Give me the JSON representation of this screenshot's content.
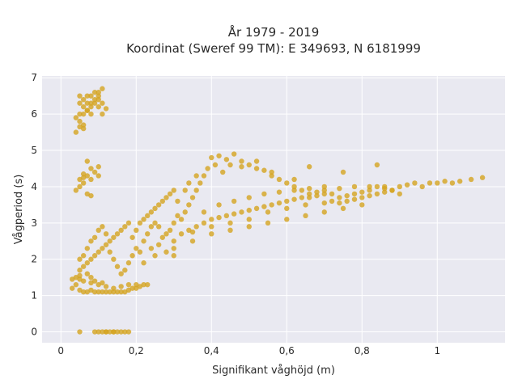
{
  "chart_data": {
    "type": "scatter",
    "title": "År 1979 - 2019",
    "subtitle": "Koordinat (Sweref 99 TM): E 349693, N 6181999",
    "xlabel": "Signifikant våghöjd (m)",
    "ylabel": "Vågperiod (s)",
    "xlim": [
      -0.05,
      1.18
    ],
    "ylim": [
      -0.3,
      7.05
    ],
    "x_ticks": [
      0,
      0.2,
      0.4,
      0.6,
      0.8,
      1
    ],
    "x_tick_labels": [
      "0",
      "0,2",
      "0,4",
      "0,6",
      "0,8",
      "1"
    ],
    "y_ticks": [
      0,
      1,
      2,
      3,
      4,
      5,
      6,
      7
    ],
    "y_tick_labels": [
      "0",
      "1",
      "2",
      "3",
      "4",
      "5",
      "6",
      "7"
    ],
    "grid": true,
    "legend": "none",
    "colors": {
      "marker": "#d4a420",
      "plot_background": "#e9e9f1",
      "grid": "#ffffff"
    },
    "points": [
      [
        0.05,
        6.5
      ],
      [
        0.06,
        6.4
      ],
      [
        0.07,
        6.3
      ],
      [
        0.08,
        6.5
      ],
      [
        0.09,
        6.6
      ],
      [
        0.1,
        6.6
      ],
      [
        0.11,
        6.7
      ],
      [
        0.1,
        6.5
      ],
      [
        0.09,
        6.3
      ],
      [
        0.08,
        6.2
      ],
      [
        0.07,
        6.1
      ],
      [
        0.06,
        6.0
      ],
      [
        0.05,
        6.0
      ],
      [
        0.04,
        5.9
      ],
      [
        0.05,
        5.8
      ],
      [
        0.06,
        5.7
      ],
      [
        0.05,
        5.65
      ],
      [
        0.06,
        5.6
      ],
      [
        0.04,
        5.5
      ],
      [
        0.07,
        6.1
      ],
      [
        0.08,
        6.3
      ],
      [
        0.1,
        6.2
      ],
      [
        0.11,
        6.3
      ],
      [
        0.12,
        6.15
      ],
      [
        0.09,
        6.4
      ],
      [
        0.06,
        6.2
      ],
      [
        0.05,
        6.3
      ],
      [
        0.07,
        6.5
      ],
      [
        0.1,
        6.4
      ],
      [
        0.08,
        6.0
      ],
      [
        0.11,
        6.0
      ],
      [
        0.07,
        4.7
      ],
      [
        0.08,
        4.5
      ],
      [
        0.09,
        4.4
      ],
      [
        0.07,
        4.3
      ],
      [
        0.06,
        4.25
      ],
      [
        0.05,
        4.2
      ],
      [
        0.06,
        4.1
      ],
      [
        0.05,
        4.0
      ],
      [
        0.04,
        3.9
      ],
      [
        0.07,
        3.8
      ],
      [
        0.08,
        3.75
      ],
      [
        0.1,
        4.3
      ],
      [
        0.1,
        4.55
      ],
      [
        0.06,
        4.35
      ],
      [
        0.08,
        4.2
      ],
      [
        0.05,
        0.0
      ],
      [
        0.09,
        0.0
      ],
      [
        0.1,
        0.0
      ],
      [
        0.11,
        0.0
      ],
      [
        0.12,
        0.0
      ],
      [
        0.13,
        0.0
      ],
      [
        0.14,
        0.0
      ],
      [
        0.15,
        0.0
      ],
      [
        0.16,
        0.0
      ],
      [
        0.17,
        0.0
      ],
      [
        0.18,
        0.0
      ],
      [
        0.12,
        0.0
      ],
      [
        0.14,
        0.0
      ],
      [
        0.03,
        1.45
      ],
      [
        0.04,
        1.3
      ],
      [
        0.03,
        1.2
      ],
      [
        0.05,
        1.15
      ],
      [
        0.06,
        1.1
      ],
      [
        0.07,
        1.1
      ],
      [
        0.08,
        1.15
      ],
      [
        0.09,
        1.1
      ],
      [
        0.1,
        1.1
      ],
      [
        0.11,
        1.1
      ],
      [
        0.12,
        1.1
      ],
      [
        0.13,
        1.1
      ],
      [
        0.14,
        1.1
      ],
      [
        0.15,
        1.1
      ],
      [
        0.16,
        1.1
      ],
      [
        0.17,
        1.1
      ],
      [
        0.18,
        1.15
      ],
      [
        0.19,
        1.2
      ],
      [
        0.2,
        1.2
      ],
      [
        0.21,
        1.25
      ],
      [
        0.22,
        1.3
      ],
      [
        0.23,
        1.3
      ],
      [
        0.16,
        1.25
      ],
      [
        0.18,
        1.3
      ],
      [
        0.2,
        1.3
      ],
      [
        0.14,
        1.2
      ],
      [
        0.12,
        1.25
      ],
      [
        0.1,
        1.3
      ],
      [
        0.08,
        1.35
      ],
      [
        0.06,
        1.4
      ],
      [
        0.05,
        1.45
      ],
      [
        0.04,
        1.5
      ],
      [
        0.05,
        1.55
      ],
      [
        0.07,
        1.6
      ],
      [
        0.08,
        1.5
      ],
      [
        0.09,
        1.4
      ],
      [
        0.11,
        1.35
      ],
      [
        0.05,
        1.7
      ],
      [
        0.06,
        1.8
      ],
      [
        0.07,
        1.9
      ],
      [
        0.08,
        2.0
      ],
      [
        0.09,
        2.1
      ],
      [
        0.1,
        2.2
      ],
      [
        0.11,
        2.3
      ],
      [
        0.12,
        2.4
      ],
      [
        0.13,
        2.5
      ],
      [
        0.14,
        2.6
      ],
      [
        0.15,
        2.7
      ],
      [
        0.16,
        2.8
      ],
      [
        0.17,
        2.9
      ],
      [
        0.18,
        3.0
      ],
      [
        0.07,
        2.3
      ],
      [
        0.08,
        2.5
      ],
      [
        0.09,
        2.6
      ],
      [
        0.06,
        2.1
      ],
      [
        0.05,
        2.0
      ],
      [
        0.1,
        2.8
      ],
      [
        0.11,
        2.9
      ],
      [
        0.12,
        2.7
      ],
      [
        0.13,
        2.2
      ],
      [
        0.14,
        2.0
      ],
      [
        0.15,
        1.8
      ],
      [
        0.16,
        1.6
      ],
      [
        0.17,
        1.7
      ],
      [
        0.18,
        1.9
      ],
      [
        0.19,
        2.1
      ],
      [
        0.2,
        2.3
      ],
      [
        0.21,
        2.2
      ],
      [
        0.22,
        2.5
      ],
      [
        0.23,
        2.7
      ],
      [
        0.24,
        2.9
      ],
      [
        0.25,
        3.0
      ],
      [
        0.19,
        2.6
      ],
      [
        0.2,
        2.8
      ],
      [
        0.21,
        3.0
      ],
      [
        0.22,
        3.1
      ],
      [
        0.23,
        3.2
      ],
      [
        0.24,
        3.3
      ],
      [
        0.25,
        3.4
      ],
      [
        0.26,
        3.5
      ],
      [
        0.27,
        3.6
      ],
      [
        0.28,
        3.7
      ],
      [
        0.29,
        3.8
      ],
      [
        0.3,
        3.9
      ],
      [
        0.26,
        2.9
      ],
      [
        0.27,
        2.6
      ],
      [
        0.28,
        2.7
      ],
      [
        0.29,
        2.8
      ],
      [
        0.3,
        3.0
      ],
      [
        0.31,
        3.2
      ],
      [
        0.32,
        3.1
      ],
      [
        0.33,
        3.3
      ],
      [
        0.34,
        3.5
      ],
      [
        0.35,
        3.7
      ],
      [
        0.36,
        3.9
      ],
      [
        0.37,
        4.1
      ],
      [
        0.38,
        4.3
      ],
      [
        0.39,
        4.5
      ],
      [
        0.4,
        4.8
      ],
      [
        0.42,
        4.85
      ],
      [
        0.44,
        4.75
      ],
      [
        0.46,
        4.9
      ],
      [
        0.48,
        4.7
      ],
      [
        0.5,
        4.6
      ],
      [
        0.52,
        4.5
      ],
      [
        0.54,
        4.45
      ],
      [
        0.56,
        4.3
      ],
      [
        0.58,
        4.2
      ],
      [
        0.6,
        4.1
      ],
      [
        0.62,
        4.0
      ],
      [
        0.64,
        3.9
      ],
      [
        0.66,
        3.8
      ],
      [
        0.68,
        3.85
      ],
      [
        0.7,
        3.9
      ],
      [
        0.72,
        3.8
      ],
      [
        0.74,
        3.7
      ],
      [
        0.76,
        3.75
      ],
      [
        0.78,
        3.8
      ],
      [
        0.8,
        3.85
      ],
      [
        0.82,
        3.9
      ],
      [
        0.84,
        4.0
      ],
      [
        0.86,
        3.95
      ],
      [
        0.88,
        3.9
      ],
      [
        0.9,
        4.0
      ],
      [
        0.92,
        4.05
      ],
      [
        0.94,
        4.1
      ],
      [
        0.96,
        4.0
      ],
      [
        0.98,
        4.1
      ],
      [
        1.0,
        4.1
      ],
      [
        1.02,
        4.15
      ],
      [
        1.04,
        4.1
      ],
      [
        1.06,
        4.15
      ],
      [
        1.09,
        4.2
      ],
      [
        1.12,
        4.25
      ],
      [
        0.84,
        4.6
      ],
      [
        0.75,
        4.4
      ],
      [
        0.66,
        4.55
      ],
      [
        0.62,
        4.2
      ],
      [
        0.56,
        4.4
      ],
      [
        0.52,
        4.7
      ],
      [
        0.48,
        4.55
      ],
      [
        0.45,
        4.6
      ],
      [
        0.43,
        4.4
      ],
      [
        0.41,
        4.6
      ],
      [
        0.36,
        4.3
      ],
      [
        0.34,
        4.1
      ],
      [
        0.31,
        3.6
      ],
      [
        0.33,
        3.9
      ],
      [
        0.3,
        2.5
      ],
      [
        0.32,
        2.7
      ],
      [
        0.34,
        2.8
      ],
      [
        0.36,
        2.9
      ],
      [
        0.38,
        3.0
      ],
      [
        0.4,
        3.1
      ],
      [
        0.42,
        3.15
      ],
      [
        0.44,
        3.2
      ],
      [
        0.46,
        3.25
      ],
      [
        0.48,
        3.3
      ],
      [
        0.5,
        3.35
      ],
      [
        0.52,
        3.4
      ],
      [
        0.54,
        3.45
      ],
      [
        0.56,
        3.5
      ],
      [
        0.58,
        3.55
      ],
      [
        0.6,
        3.6
      ],
      [
        0.62,
        3.65
      ],
      [
        0.64,
        3.7
      ],
      [
        0.66,
        3.7
      ],
      [
        0.68,
        3.75
      ],
      [
        0.7,
        3.8
      ],
      [
        0.72,
        3.6
      ],
      [
        0.74,
        3.55
      ],
      [
        0.76,
        3.6
      ],
      [
        0.78,
        3.65
      ],
      [
        0.8,
        3.7
      ],
      [
        0.82,
        3.75
      ],
      [
        0.84,
        3.8
      ],
      [
        0.86,
        3.85
      ],
      [
        0.88,
        3.9
      ],
      [
        0.9,
        3.8
      ],
      [
        0.45,
        2.8
      ],
      [
        0.5,
        2.9
      ],
      [
        0.55,
        3.0
      ],
      [
        0.6,
        3.1
      ],
      [
        0.65,
        3.2
      ],
      [
        0.7,
        3.3
      ],
      [
        0.75,
        3.4
      ],
      [
        0.8,
        3.5
      ],
      [
        0.4,
        2.7
      ],
      [
        0.35,
        2.5
      ],
      [
        0.3,
        2.3
      ],
      [
        0.25,
        2.1
      ],
      [
        0.22,
        1.9
      ],
      [
        0.24,
        2.3
      ],
      [
        0.26,
        2.4
      ],
      [
        0.28,
        2.2
      ],
      [
        0.3,
        2.1
      ],
      [
        0.55,
        3.3
      ],
      [
        0.6,
        3.4
      ],
      [
        0.65,
        3.5
      ],
      [
        0.7,
        3.55
      ],
      [
        0.5,
        3.1
      ],
      [
        0.45,
        3.0
      ],
      [
        0.4,
        2.9
      ],
      [
        0.35,
        2.75
      ],
      [
        0.38,
        3.3
      ],
      [
        0.42,
        3.5
      ],
      [
        0.46,
        3.6
      ],
      [
        0.5,
        3.7
      ],
      [
        0.54,
        3.8
      ],
      [
        0.58,
        3.85
      ],
      [
        0.62,
        3.9
      ],
      [
        0.66,
        3.95
      ],
      [
        0.7,
        4.0
      ],
      [
        0.74,
        3.95
      ],
      [
        0.78,
        4.0
      ],
      [
        0.82,
        4.0
      ],
      [
        0.86,
        4.0
      ]
    ]
  }
}
